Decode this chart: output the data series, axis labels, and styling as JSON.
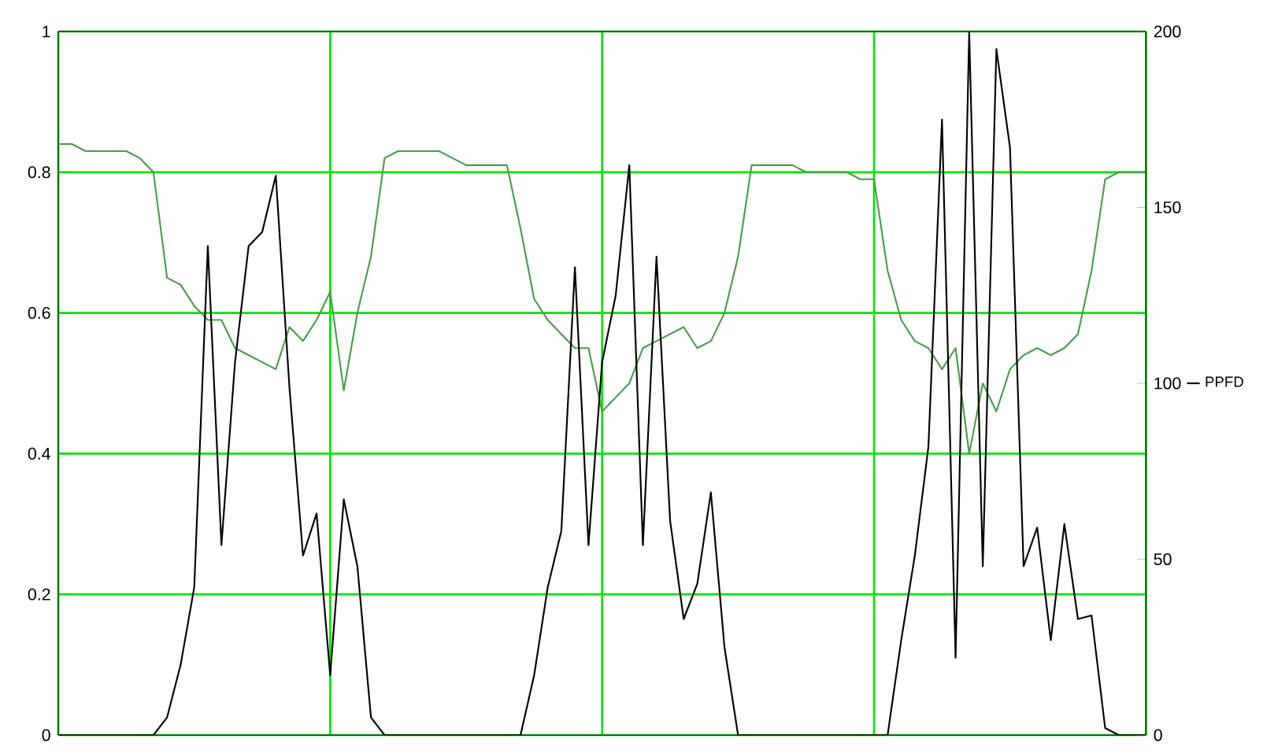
{
  "chart_data": {
    "type": "line",
    "categories": [
      null,
      null,
      null,
      null,
      null,
      null,
      null,
      null,
      null,
      null,
      null,
      null,
      null,
      null,
      null,
      null,
      null,
      null,
      null,
      null,
      null,
      null,
      null,
      null,
      null,
      null,
      null,
      null,
      null,
      null,
      null,
      null,
      null,
      null,
      null,
      null,
      null,
      null,
      null,
      null,
      null,
      null,
      null,
      null,
      null,
      null,
      null,
      null,
      null,
      null,
      null,
      null,
      null,
      null,
      null,
      null,
      null,
      null,
      null,
      null,
      null,
      null,
      null,
      null,
      null,
      null,
      null,
      null,
      null,
      null,
      null,
      null,
      null,
      null,
      null,
      null,
      null,
      null,
      null,
      null,
      null
    ],
    "ylim": [
      0,
      1
    ],
    "yticks": [
      0,
      0.2,
      0.4,
      0.6,
      0.8,
      1
    ],
    "y2lim": [
      0,
      200
    ],
    "y2ticks": [
      0,
      50,
      100,
      150,
      200
    ],
    "grid": true,
    "legend": "right",
    "series": [
      {
        "color": "#4c9c4c",
        "values": [
          0.84,
          0.84,
          0.83,
          0.83,
          0.83,
          0.83,
          0.82,
          0.8,
          0.65,
          0.64,
          0.61,
          0.59,
          0.59,
          0.55,
          0.54,
          0.53,
          0.52,
          0.58,
          0.56,
          0.59,
          0.63,
          0.49,
          0.6,
          0.68,
          0.82,
          0.83,
          0.83,
          0.83,
          0.83,
          0.82,
          0.81,
          0.81,
          0.81,
          0.81,
          0.72,
          0.62,
          0.59,
          0.57,
          0.55,
          0.55,
          0.46,
          0.48,
          0.5,
          0.55,
          0.56,
          0.57,
          0.58,
          0.55,
          0.56,
          0.6,
          0.68,
          0.81,
          0.81,
          0.81,
          0.81,
          0.8,
          0.8,
          0.8,
          0.8,
          0.79,
          0.79,
          0.66,
          0.59,
          0.56,
          0.55,
          0.52,
          0.55,
          0.4,
          0.5,
          0.46,
          0.52,
          0.54,
          0.55,
          0.54,
          0.55,
          0.57,
          0.66,
          0.79,
          0.8,
          0.8,
          0.8
        ]
      },
      {
        "name": "PPFD",
        "color": "#000000",
        "axis": "y2",
        "values": [
          0,
          0,
          0,
          0,
          0,
          0,
          0,
          0,
          5,
          20,
          42,
          139,
          54,
          106,
          139,
          143,
          159,
          99,
          51,
          63,
          17,
          67,
          48,
          5,
          0,
          0,
          0,
          0,
          0,
          0,
          0,
          0,
          0,
          0,
          0,
          17,
          42,
          58,
          133,
          54,
          106,
          125,
          162,
          54,
          136,
          61,
          33,
          43,
          69,
          25,
          0,
          0,
          0,
          0,
          0,
          0,
          0,
          0,
          0,
          0,
          0,
          0,
          27,
          51,
          82,
          175,
          22,
          200,
          48,
          195,
          167,
          48,
          59,
          27,
          60,
          33,
          34,
          2,
          0,
          0,
          0
        ]
      }
    ]
  }
}
